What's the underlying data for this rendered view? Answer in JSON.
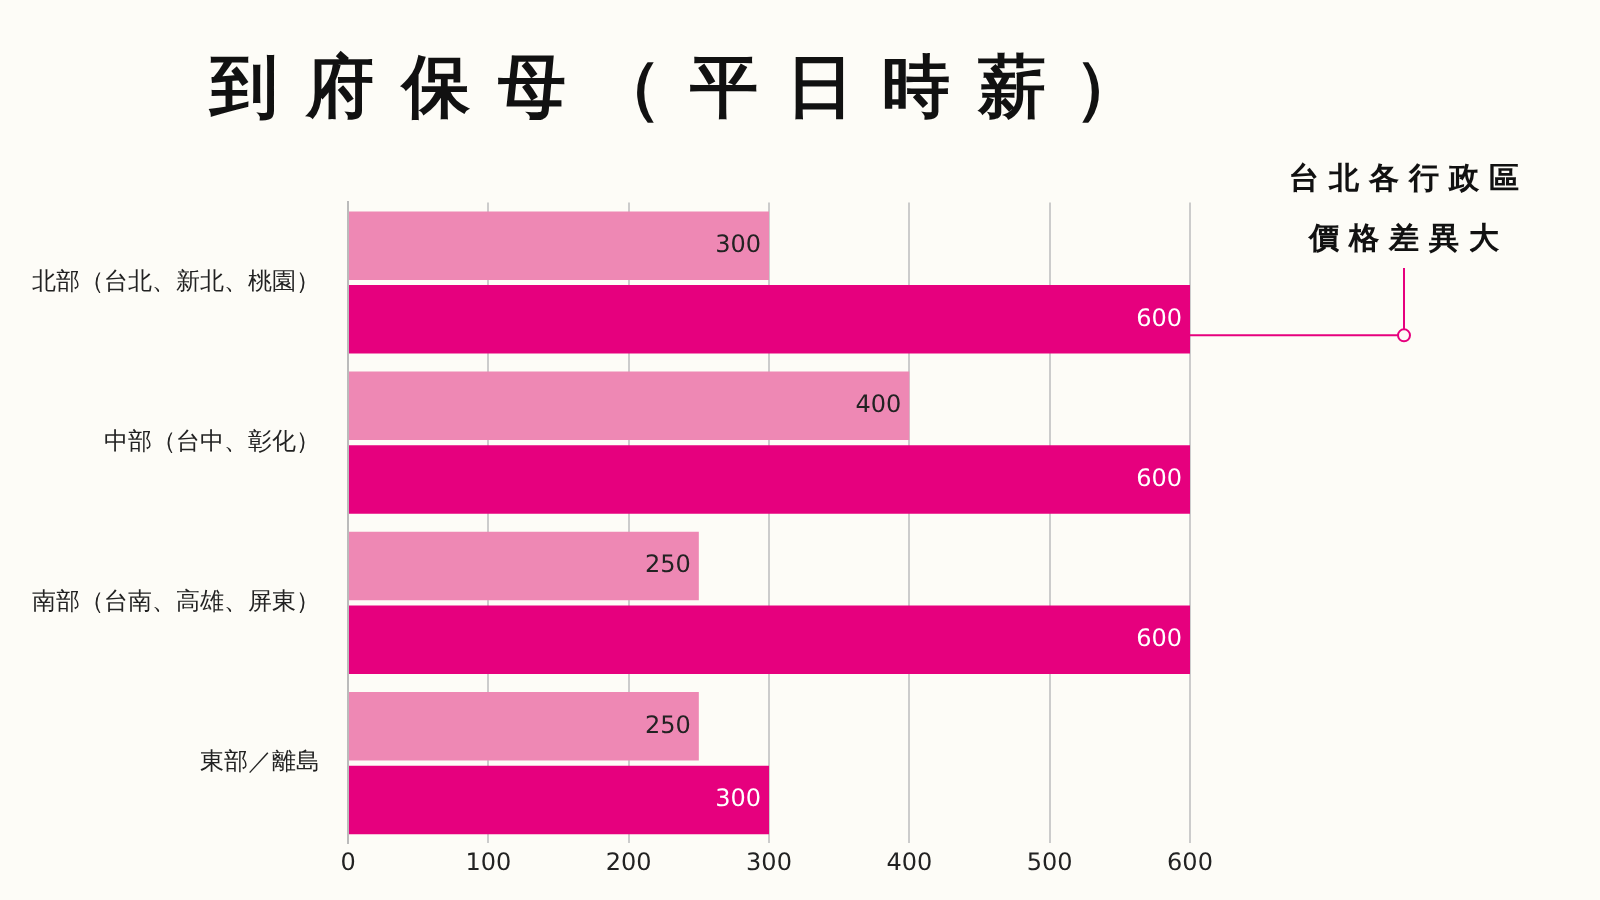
{
  "chart_data": {
    "type": "bar",
    "orientation": "horizontal",
    "title": "到府保母（平日時薪）",
    "categories": [
      "北部（台北、新北、桃園）",
      "中部（台中、彰化）",
      "南部（台南、高雄、屏東）",
      "東部／離島"
    ],
    "series": [
      {
        "color": "#ee88b4",
        "values": [
          300,
          400,
          250,
          250
        ]
      },
      {
        "color": "#e6007e",
        "values": [
          600,
          600,
          600,
          300
        ]
      }
    ],
    "xlim": [
      0,
      600
    ],
    "xticks": [
      0,
      100,
      200,
      300,
      400,
      500,
      600
    ],
    "grid": "x",
    "data_labels": true,
    "annotations": [
      "台北各行政區價格差異大"
    ]
  }
}
